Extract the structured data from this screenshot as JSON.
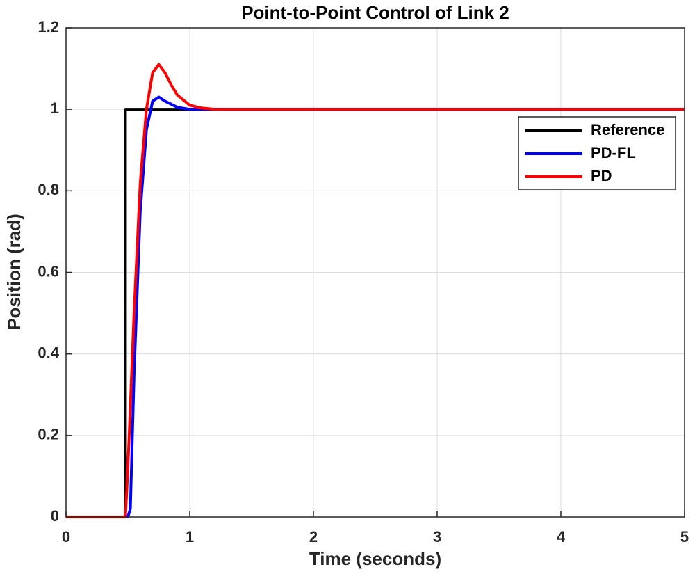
{
  "chart_data": {
    "type": "line",
    "title": "Point-to-Point Control of Link 2",
    "x_label": "Time (seconds)",
    "y_label": "Position (rad)",
    "xlim": [
      0,
      5
    ],
    "xticks": [
      0,
      1,
      2,
      3,
      4,
      5
    ],
    "ylim": [
      0,
      1.2
    ],
    "yticks": [
      0,
      0.2,
      0.4,
      0.6,
      0.8,
      1,
      1.2
    ],
    "grid": true,
    "legend": "upper right",
    "series": [
      {
        "name": "Reference",
        "color": "#000000",
        "x": [
          0,
          0.48,
          0.48,
          5
        ],
        "values": [
          0,
          0,
          1,
          1
        ]
      },
      {
        "name": "PD-FL",
        "color": "#0000ff",
        "x": [
          0,
          0.5,
          0.52,
          0.55,
          0.6,
          0.65,
          0.7,
          0.75,
          0.8,
          0.9,
          1.0,
          1.1,
          1.2,
          1.5,
          5
        ],
        "values": [
          0,
          0,
          0.02,
          0.35,
          0.75,
          0.95,
          1.02,
          1.03,
          1.02,
          1.005,
          1.0,
          1.0,
          1.0,
          1.0,
          1.0
        ]
      },
      {
        "name": "PD",
        "color": "#ff0000",
        "x": [
          0,
          0.48,
          0.5,
          0.55,
          0.6,
          0.65,
          0.7,
          0.75,
          0.8,
          0.85,
          0.9,
          1.0,
          1.1,
          1.2,
          1.3,
          5
        ],
        "values": [
          0,
          0,
          0.12,
          0.5,
          0.82,
          1.0,
          1.09,
          1.11,
          1.09,
          1.06,
          1.035,
          1.01,
          1.003,
          1.0,
          1.0,
          1.0
        ]
      }
    ]
  }
}
